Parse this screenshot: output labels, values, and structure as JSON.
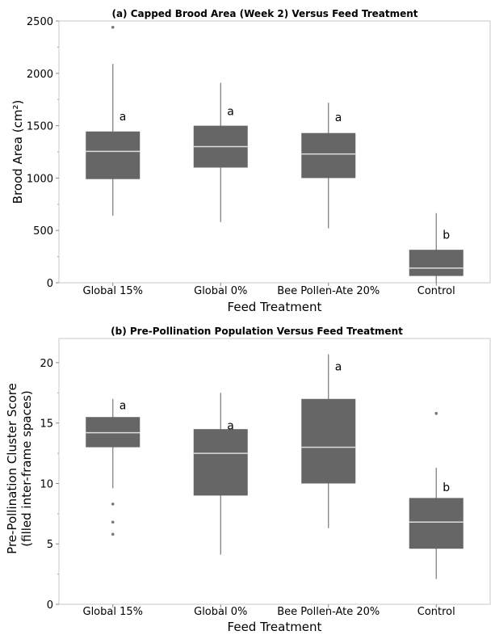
{
  "chart_data": [
    {
      "type": "box",
      "title": "(a) Capped Brood Area (Week 2) Versus Feed Treatment",
      "xlabel": "Feed Treatment",
      "ylabel": "Brood Area (cm²)",
      "ylim": [
        0,
        2500
      ],
      "yticks": [
        0,
        500,
        1000,
        1500,
        2000,
        2500
      ],
      "ytick_labels": [
        "0",
        "500",
        "1000",
        "1500",
        "2000",
        "2500"
      ],
      "box_color": "#666666",
      "median_color": "#dddddd",
      "categories": [
        "Global 15%",
        "Global 0%",
        "Bee Pollen-Ate 20%",
        "Control"
      ],
      "boxes": [
        {
          "category": "Global 15%",
          "whisker_low": 640,
          "q1": 990,
          "median": 1255,
          "q3": 1445,
          "whisker_high": 2090,
          "outliers": [
            2440
          ],
          "letter": "a",
          "letter_y": 1590
        },
        {
          "category": "Global 0%",
          "whisker_low": 580,
          "q1": 1100,
          "median": 1300,
          "q3": 1500,
          "whisker_high": 1910,
          "outliers": [],
          "letter": "a",
          "letter_y": 1640
        },
        {
          "category": "Bee Pollen-Ate 20%",
          "whisker_low": 520,
          "q1": 1000,
          "median": 1230,
          "q3": 1430,
          "whisker_high": 1720,
          "outliers": [],
          "letter": "a",
          "letter_y": 1580
        },
        {
          "category": "Control",
          "whisker_low": 0,
          "q1": 65,
          "median": 140,
          "q3": 315,
          "whisker_high": 665,
          "outliers": [],
          "letter": "b",
          "letter_y": 460
        }
      ]
    },
    {
      "type": "box",
      "title": "(b) Pre-Pollination Population Versus Feed Treatment",
      "xlabel": "Feed Treatment",
      "ylabel": [
        "Pre-Pollination Cluster Score",
        "(filled inter-frame spaces)"
      ],
      "ylim": [
        0,
        22
      ],
      "yticks": [
        0,
        5,
        10,
        15,
        20
      ],
      "ytick_labels": [
        "0",
        "5",
        "10",
        "15",
        "20"
      ],
      "box_color": "#666666",
      "median_color": "#dddddd",
      "categories": [
        "Global 15%",
        "Global 0%",
        "Bee Pollen-Ate 20%",
        "Control"
      ],
      "boxes": [
        {
          "category": "Global 15%",
          "whisker_low": 9.6,
          "q1": 13.0,
          "median": 14.2,
          "q3": 15.5,
          "whisker_high": 17.0,
          "outliers": [
            8.3,
            6.8,
            5.8
          ],
          "letter": "a",
          "letter_y": 16.5
        },
        {
          "category": "Global 0%",
          "whisker_low": 4.1,
          "q1": 9.0,
          "median": 12.5,
          "q3": 14.5,
          "whisker_high": 17.5,
          "outliers": [],
          "letter": "a",
          "letter_y": 14.8
        },
        {
          "category": "Bee Pollen-Ate 20%",
          "whisker_low": 6.3,
          "q1": 10.0,
          "median": 13.0,
          "q3": 17.0,
          "whisker_high": 20.7,
          "outliers": [],
          "letter": "a",
          "letter_y": 19.7
        },
        {
          "category": "Control",
          "whisker_low": 2.1,
          "q1": 4.6,
          "median": 6.8,
          "q3": 8.8,
          "whisker_high": 11.3,
          "outliers": [
            15.8
          ],
          "letter": "b",
          "letter_y": 9.7
        }
      ]
    }
  ]
}
